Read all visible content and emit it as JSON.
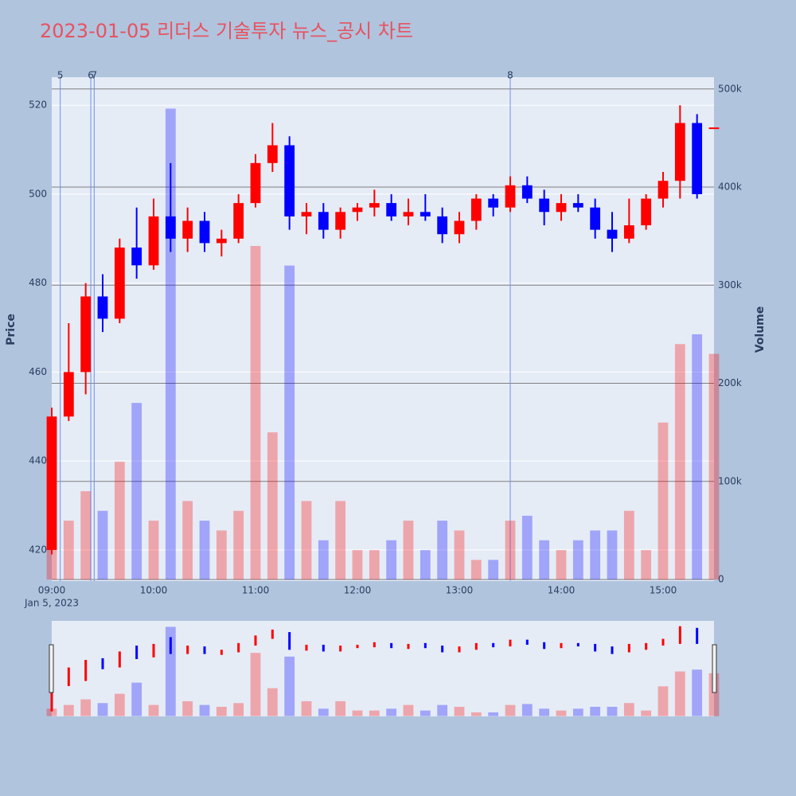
{
  "chart_data": {
    "type": "candlestick",
    "title": "2023-01-05 리더스 기술투자 뉴스_공시 차트",
    "y_title": "Price",
    "y2_title": "Volume",
    "x": [
      "09:00",
      "09:10",
      "09:20",
      "09:30",
      "09:40",
      "09:50",
      "10:00",
      "10:10",
      "10:20",
      "10:30",
      "10:40",
      "10:50",
      "11:00",
      "11:10",
      "11:20",
      "11:30",
      "11:40",
      "11:50",
      "12:00",
      "12:10",
      "12:20",
      "12:30",
      "12:40",
      "12:50",
      "13:00",
      "13:10",
      "13:20",
      "13:30",
      "13:40",
      "13:50",
      "14:00",
      "14:10",
      "14:20",
      "14:30",
      "14:40",
      "14:50",
      "15:00",
      "15:10",
      "15:20",
      "15:30"
    ],
    "open": [
      420,
      450,
      460,
      477,
      472,
      488,
      484,
      495,
      490,
      494,
      489,
      490,
      498,
      507,
      511,
      495,
      496,
      492,
      496,
      497,
      498,
      495,
      496,
      495,
      491,
      494,
      499,
      497,
      502,
      499,
      496,
      498,
      497,
      492,
      490,
      493,
      499,
      503,
      516,
      515
    ],
    "high": [
      452,
      471,
      480,
      482,
      490,
      497,
      499,
      507,
      497,
      496,
      492,
      500,
      509,
      516,
      513,
      498,
      498,
      497,
      498,
      501,
      500,
      499,
      500,
      497,
      496,
      500,
      500,
      504,
      504,
      501,
      500,
      500,
      499,
      496,
      499,
      500,
      505,
      520,
      518,
      515
    ],
    "low": [
      419,
      449,
      455,
      469,
      471,
      481,
      483,
      487,
      487,
      487,
      486,
      489,
      497,
      505,
      492,
      491,
      490,
      490,
      494,
      495,
      494,
      493,
      494,
      489,
      489,
      492,
      495,
      496,
      498,
      493,
      494,
      496,
      490,
      487,
      489,
      492,
      497,
      499,
      499,
      515
    ],
    "close": [
      450,
      460,
      477,
      472,
      488,
      484,
      495,
      490,
      494,
      489,
      490,
      498,
      507,
      511,
      495,
      496,
      492,
      496,
      497,
      498,
      495,
      496,
      495,
      491,
      494,
      499,
      497,
      502,
      499,
      496,
      498,
      497,
      492,
      490,
      493,
      499,
      503,
      516,
      500,
      515
    ],
    "volume": [
      40000,
      60000,
      90000,
      70000,
      120000,
      180000,
      60000,
      480000,
      80000,
      60000,
      50000,
      70000,
      340000,
      150000,
      320000,
      80000,
      40000,
      80000,
      30000,
      30000,
      40000,
      60000,
      30000,
      60000,
      50000,
      20000,
      20000,
      60000,
      65000,
      40000,
      30000,
      40000,
      50000,
      50000,
      70000,
      30000,
      160000,
      240000,
      250000,
      230000
    ],
    "increasing_color": "#ff0000",
    "decreasing_color": "#0000ff",
    "xlim": [
      "09:00",
      "15:30"
    ],
    "xticks": [
      "09:00",
      "10:00",
      "11:00",
      "12:00",
      "13:00",
      "14:00",
      "15:00"
    ],
    "x_date_label": "Jan 5, 2023",
    "ylim": [
      413,
      526.3
    ],
    "yticks": [
      420,
      440,
      460,
      480,
      500,
      520
    ],
    "y2lim": [
      -1600,
      512000
    ],
    "y2ticks": [
      {
        "value": 0,
        "label": "0"
      },
      {
        "value": 100000,
        "label": "100k"
      },
      {
        "value": 200000,
        "label": "200k"
      },
      {
        "value": 300000,
        "label": "300k"
      },
      {
        "value": 400000,
        "label": "400k"
      },
      {
        "value": 500000,
        "label": "500k"
      }
    ],
    "grid": true,
    "annotations": [
      {
        "x": "09:05",
        "text": "5"
      },
      {
        "x": "09:23",
        "text": "6"
      },
      {
        "x": "09:25",
        "text": "7"
      },
      {
        "x": "13:30",
        "text": "8"
      }
    ]
  }
}
